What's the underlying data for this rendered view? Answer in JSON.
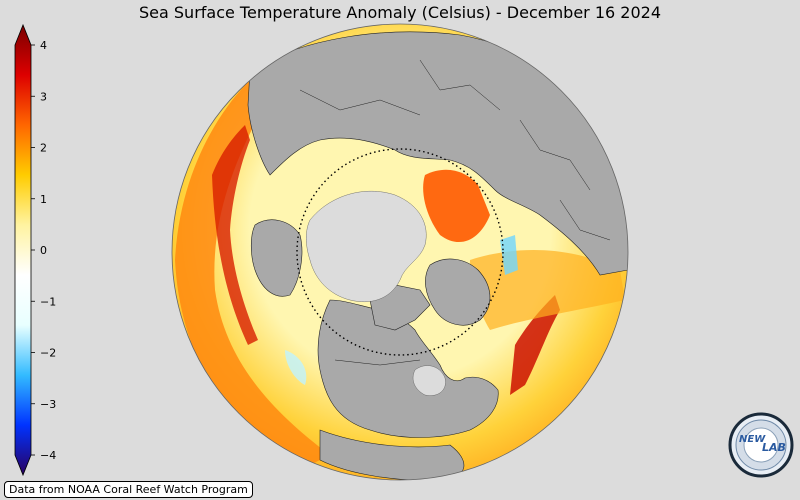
{
  "title": "Sea Surface Temperature Anomaly (Celsius) - December 16 2024",
  "credit": "Data from NOAA Coral Reef Watch Program",
  "logo": {
    "text_left": "NEW",
    "text_right": "LAB"
  },
  "colorbar": {
    "min": -4,
    "max": 4,
    "ticks": [
      {
        "value": 4,
        "label": "4"
      },
      {
        "value": 3,
        "label": "3"
      },
      {
        "value": 2,
        "label": "2"
      },
      {
        "value": 1,
        "label": "1"
      },
      {
        "value": 0,
        "label": "0"
      },
      {
        "value": -1,
        "label": "−1"
      },
      {
        "value": -2,
        "label": "−2"
      },
      {
        "value": -3,
        "label": "−3"
      },
      {
        "value": -4,
        "label": "−4"
      }
    ],
    "colors": [
      "#2a0060",
      "#0033ff",
      "#33bbff",
      "#e8ffff",
      "#ffffff",
      "#fff3a0",
      "#ffcc00",
      "#ff6600",
      "#dd0000",
      "#7a0000"
    ]
  },
  "colors": {
    "background": "#dcdcdc",
    "land": "#a9a9a9",
    "sea_ice": "#dcdcdc",
    "ocean_warm": "#ffd23a",
    "ocean_hot": "#e02000"
  }
}
